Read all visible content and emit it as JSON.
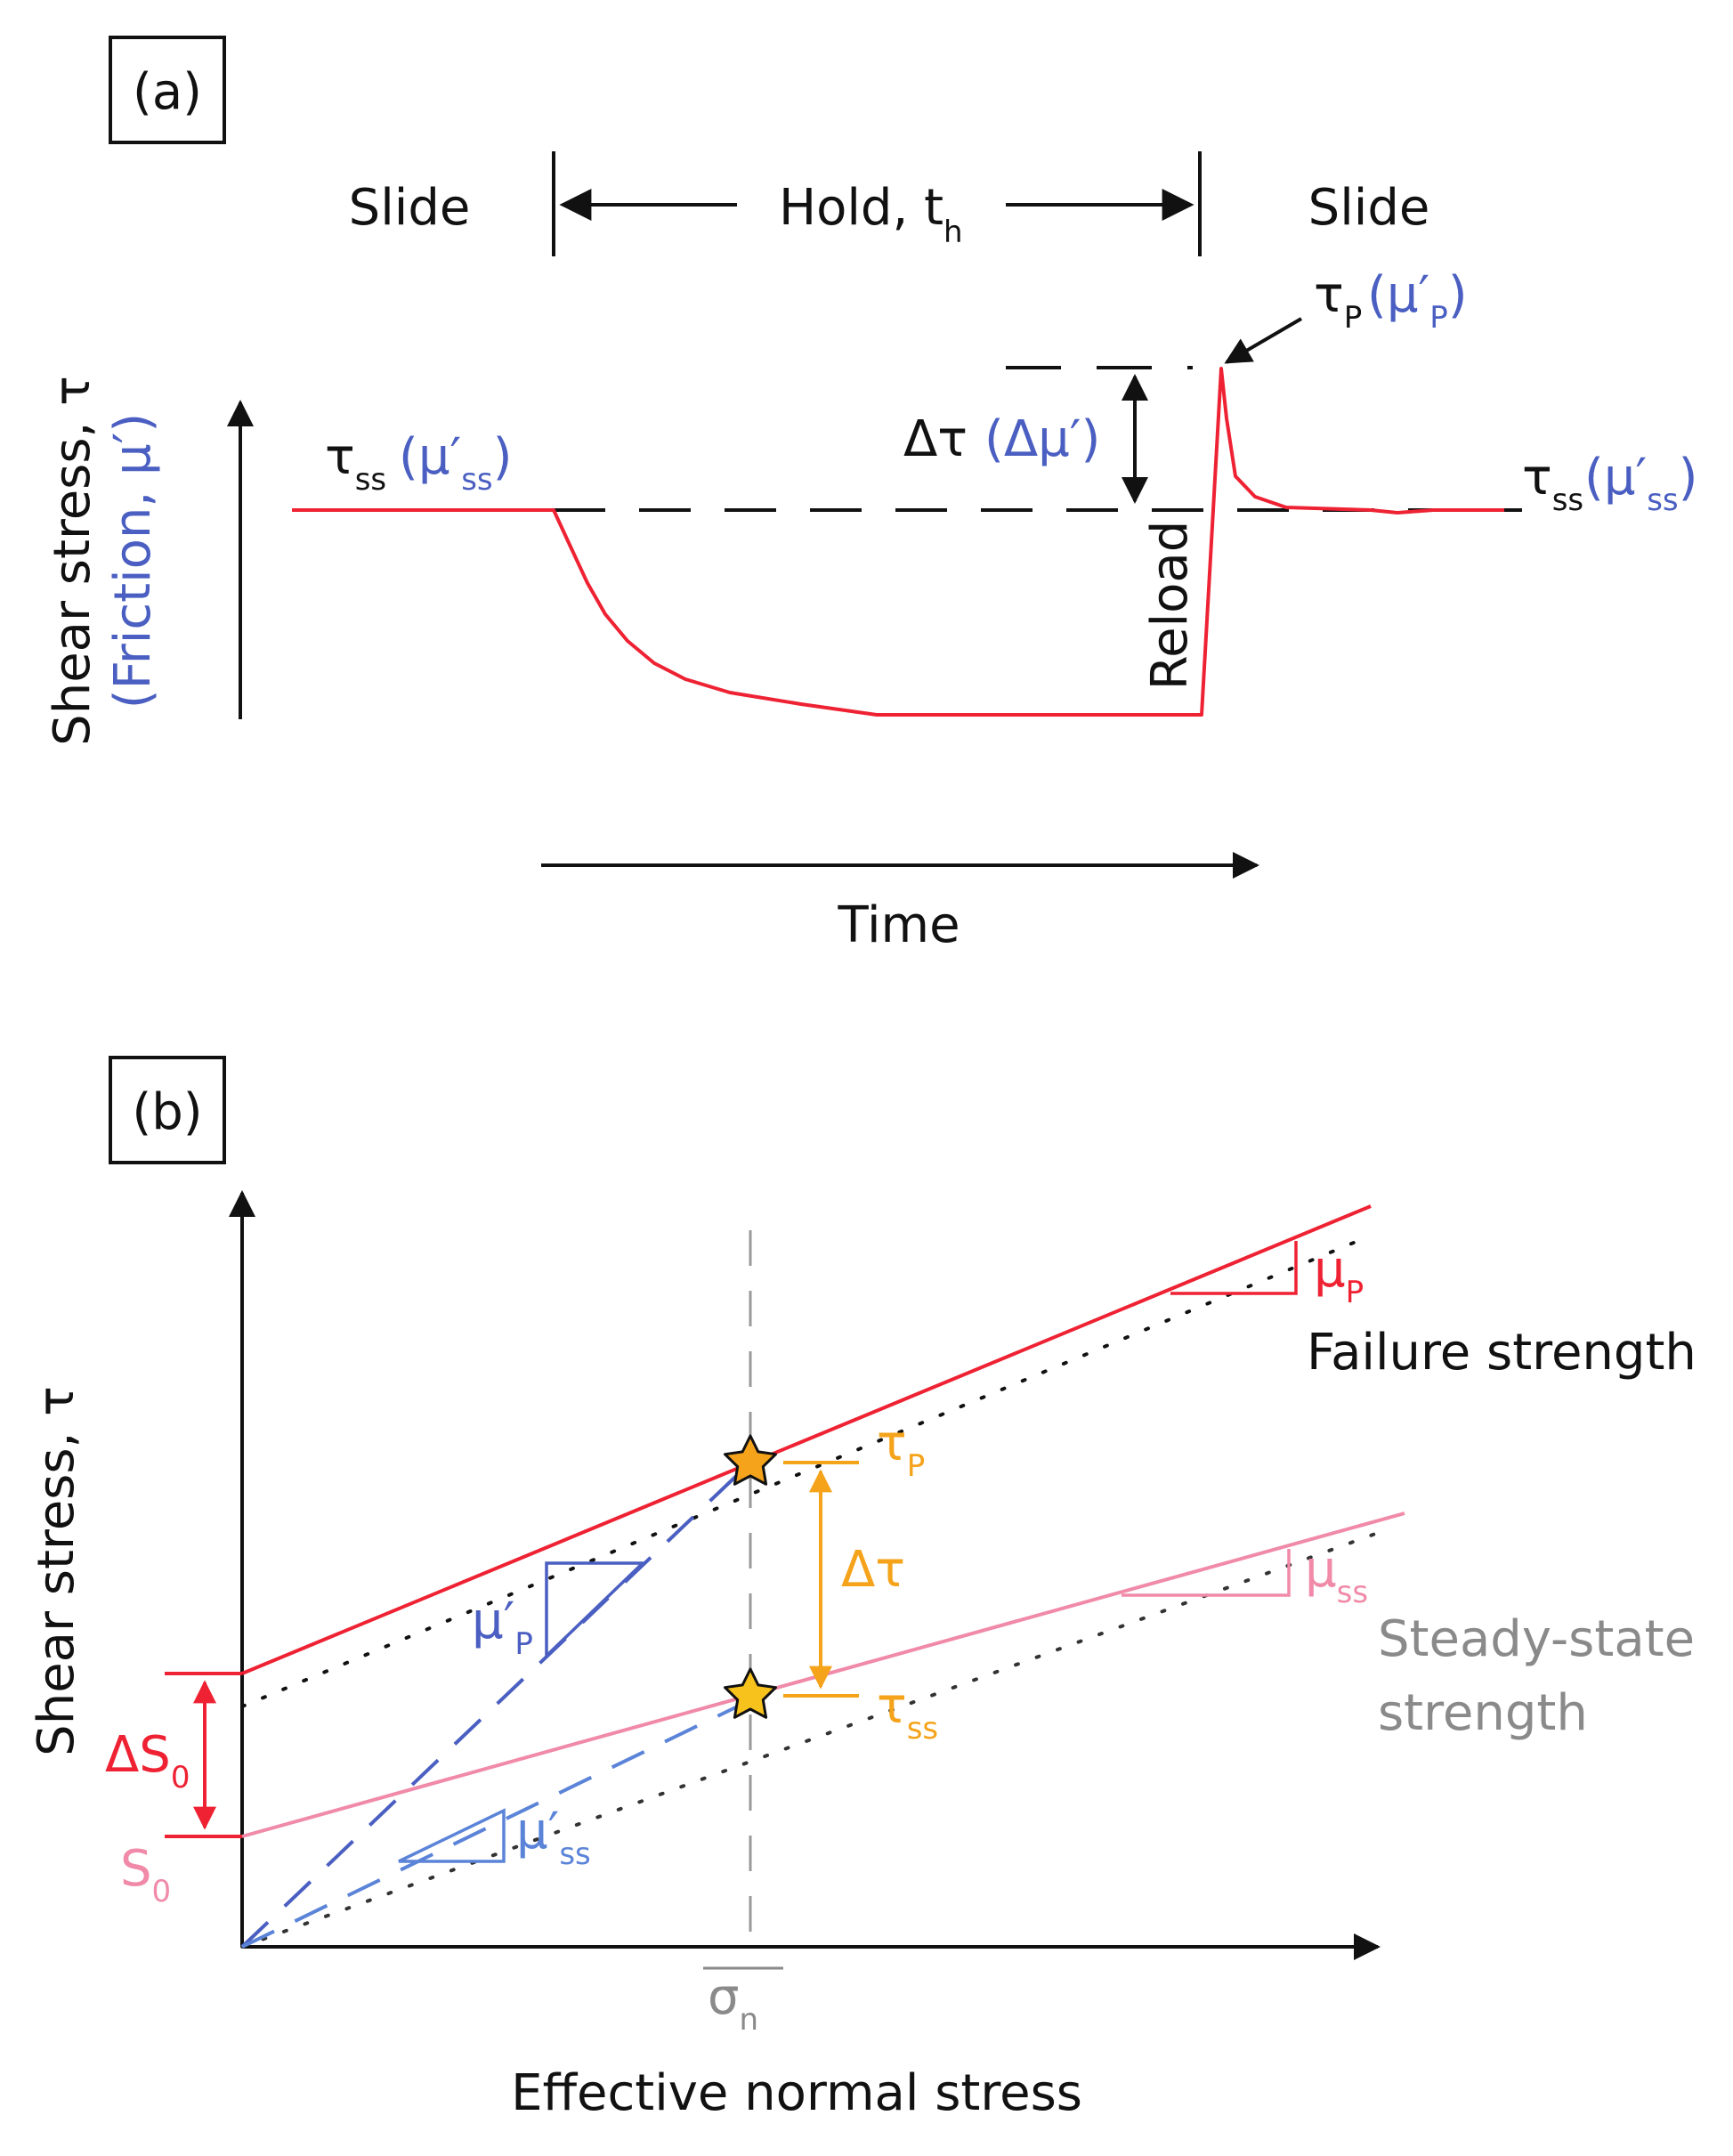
{
  "panel_a": {
    "label": "(a)",
    "slide_left": "Slide",
    "hold": "Hold, t",
    "hold_sub": "h",
    "slide_right": "Slide",
    "y_axis_line1": "Shear stress, τ",
    "y_axis_line2": "(Friction, μ′)",
    "x_axis": "Time",
    "reload": "Reload",
    "tau_ss_left": "τ",
    "tau_ss_left_sub": "ss",
    "mu_ss_left": "(μ′",
    "mu_ss_left_sub": "ss",
    "mu_ss_left_close": ")",
    "tau_ss_right": "τ",
    "tau_ss_right_sub": "ss",
    "mu_ss_right": "(μ′",
    "mu_ss_right_sub": "ss",
    "mu_ss_right_close": ")",
    "tau_p": "τ",
    "tau_p_sub": "P",
    "mu_p": "(μ′",
    "mu_p_sub": "P",
    "mu_p_close": ")",
    "delta_tau": "Δτ",
    "delta_mu": "(Δμ′)"
  },
  "panel_b": {
    "label": "(b)",
    "y_axis": "Shear stress, τ",
    "x_axis": "Effective normal stress",
    "sigma": "σ",
    "sigma_sub": "n",
    "failure": "Failure strength",
    "steady_line1": "Steady-state",
    "steady_line2": "strength",
    "mu_p": "μ",
    "mu_p_sub": "P",
    "mu_ss": "μ",
    "mu_ss_sub": "ss",
    "mu_prime_p": "μ′",
    "mu_prime_p_sub": "P",
    "mu_prime_ss": "μ′",
    "mu_prime_ss_sub": "ss",
    "tau_p": "τ",
    "tau_p_sub": "P",
    "tau_ss": "τ",
    "tau_ss_sub": "ss",
    "delta_tau": "Δτ",
    "delta_s0": "ΔS",
    "delta_s0_sub": "0",
    "s0": "S",
    "s0_sub": "0"
  },
  "colors": {
    "black": "#111111",
    "red": "#ee2233",
    "blue": "#4a5fc1",
    "light_blue": "#5b84d8",
    "orange": "#f5a31a",
    "pink": "#f08aa8",
    "grey": "#8a8a8a",
    "star_fill": "#f7c21b"
  }
}
